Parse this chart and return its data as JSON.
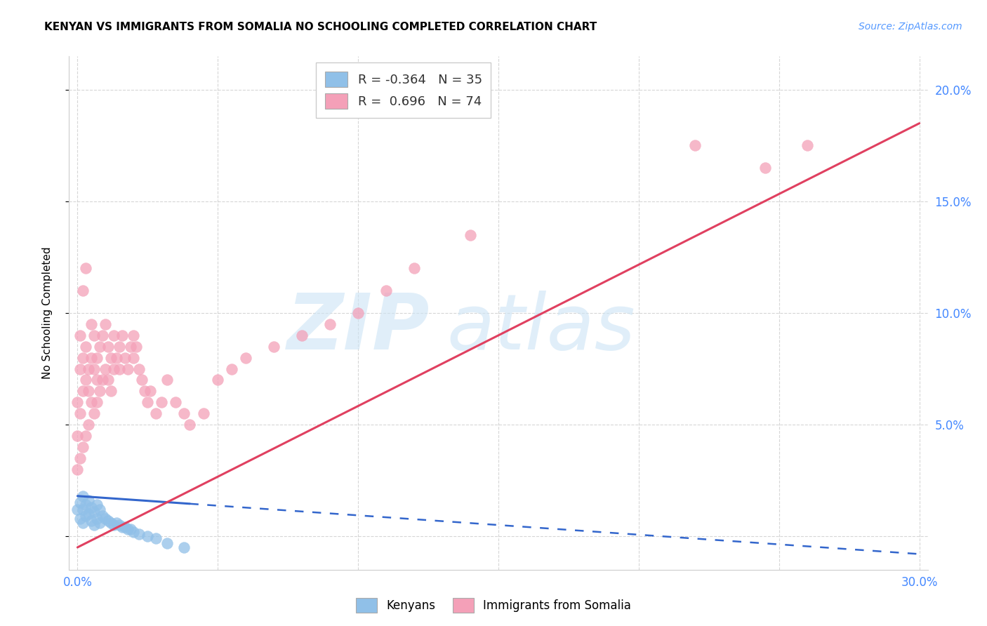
{
  "title": "KENYAN VS IMMIGRANTS FROM SOMALIA NO SCHOOLING COMPLETED CORRELATION CHART",
  "source": "Source: ZipAtlas.com",
  "ylabel": "No Schooling Completed",
  "xlim": [
    0.0,
    0.3
  ],
  "ylim": [
    -0.015,
    0.215
  ],
  "x_ticks": [
    0.0,
    0.05,
    0.1,
    0.15,
    0.2,
    0.25,
    0.3
  ],
  "y_ticks": [
    0.0,
    0.05,
    0.1,
    0.15,
    0.2
  ],
  "y_tick_labels_right": [
    "",
    "5.0%",
    "10.0%",
    "15.0%",
    "20.0%"
  ],
  "kenya_color": "#90c0e8",
  "somalia_color": "#f4a0b8",
  "kenya_line_color": "#3366cc",
  "somalia_line_color": "#e04060",
  "kenya_line_solid_end": 0.04,
  "kenya_line_x": [
    0.0,
    0.3
  ],
  "kenya_line_y": [
    0.018,
    -0.008
  ],
  "somalia_line_x": [
    0.0,
    0.3
  ],
  "somalia_line_y": [
    -0.005,
    0.185
  ],
  "kenya_scatter_x": [
    0.0,
    0.001,
    0.001,
    0.002,
    0.002,
    0.002,
    0.003,
    0.003,
    0.004,
    0.004,
    0.005,
    0.005,
    0.006,
    0.006,
    0.007,
    0.007,
    0.008,
    0.008,
    0.009,
    0.01,
    0.011,
    0.012,
    0.013,
    0.014,
    0.015,
    0.016,
    0.017,
    0.018,
    0.019,
    0.02,
    0.022,
    0.025,
    0.028,
    0.032,
    0.038
  ],
  "kenya_scatter_y": [
    0.012,
    0.015,
    0.008,
    0.018,
    0.012,
    0.006,
    0.014,
    0.009,
    0.016,
    0.01,
    0.013,
    0.007,
    0.011,
    0.005,
    0.014,
    0.008,
    0.012,
    0.006,
    0.009,
    0.008,
    0.007,
    0.006,
    0.005,
    0.006,
    0.005,
    0.004,
    0.004,
    0.003,
    0.003,
    0.002,
    0.001,
    0.0,
    -0.001,
    -0.003,
    -0.005
  ],
  "somalia_scatter_x": [
    0.0,
    0.0,
    0.0,
    0.001,
    0.001,
    0.001,
    0.001,
    0.002,
    0.002,
    0.002,
    0.002,
    0.003,
    0.003,
    0.003,
    0.003,
    0.004,
    0.004,
    0.004,
    0.005,
    0.005,
    0.005,
    0.006,
    0.006,
    0.006,
    0.007,
    0.007,
    0.007,
    0.008,
    0.008,
    0.009,
    0.009,
    0.01,
    0.01,
    0.011,
    0.011,
    0.012,
    0.012,
    0.013,
    0.013,
    0.014,
    0.015,
    0.015,
    0.016,
    0.017,
    0.018,
    0.019,
    0.02,
    0.02,
    0.021,
    0.022,
    0.023,
    0.024,
    0.025,
    0.026,
    0.028,
    0.03,
    0.032,
    0.035,
    0.038,
    0.04,
    0.045,
    0.05,
    0.055,
    0.06,
    0.07,
    0.08,
    0.09,
    0.1,
    0.11,
    0.12,
    0.14,
    0.22,
    0.245,
    0.26
  ],
  "somalia_scatter_y": [
    0.03,
    0.045,
    0.06,
    0.035,
    0.055,
    0.075,
    0.09,
    0.04,
    0.065,
    0.08,
    0.11,
    0.045,
    0.07,
    0.085,
    0.12,
    0.05,
    0.075,
    0.065,
    0.06,
    0.08,
    0.095,
    0.055,
    0.075,
    0.09,
    0.06,
    0.08,
    0.07,
    0.065,
    0.085,
    0.07,
    0.09,
    0.075,
    0.095,
    0.07,
    0.085,
    0.08,
    0.065,
    0.075,
    0.09,
    0.08,
    0.085,
    0.075,
    0.09,
    0.08,
    0.075,
    0.085,
    0.09,
    0.08,
    0.085,
    0.075,
    0.07,
    0.065,
    0.06,
    0.065,
    0.055,
    0.06,
    0.07,
    0.06,
    0.055,
    0.05,
    0.055,
    0.07,
    0.075,
    0.08,
    0.085,
    0.09,
    0.095,
    0.1,
    0.11,
    0.12,
    0.135,
    0.175,
    0.165,
    0.175
  ],
  "legend_r_kenya": "R = -0.364",
  "legend_n_kenya": "N = 35",
  "legend_r_somalia": "R =  0.696",
  "legend_n_somalia": "N = 74",
  "watermark_zip": "ZIP",
  "watermark_atlas": "atlas"
}
